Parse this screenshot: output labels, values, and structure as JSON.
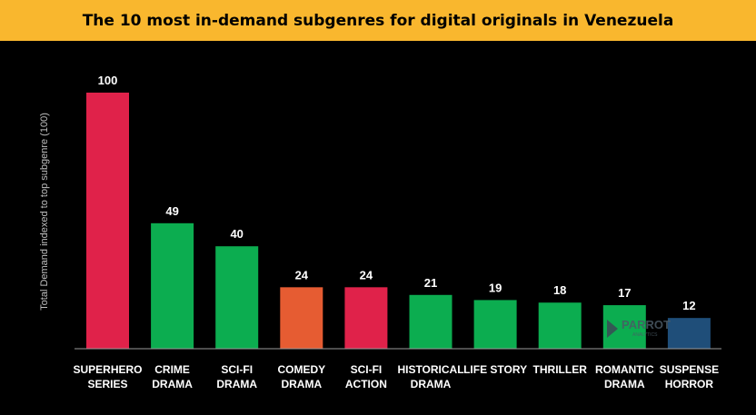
{
  "chart_data": {
    "type": "bar",
    "title": "The 10 most in-demand subgenres for digital originals in Venezuela",
    "ylabel": "Total Demand indexed to top subgenre (100)",
    "xlabel": "",
    "ylim": [
      0,
      100
    ],
    "grid": false,
    "categories": [
      [
        "SUPERHERO",
        "SERIES"
      ],
      [
        "CRIME",
        "DRAMA"
      ],
      [
        "SCI-FI",
        "DRAMA"
      ],
      [
        "COMEDY",
        "DRAMA"
      ],
      [
        "SCI-FI",
        "ACTION"
      ],
      [
        "HISTORICAL",
        "DRAMA"
      ],
      [
        "LIFE STORY"
      ],
      [
        "THRILLER"
      ],
      [
        "ROMANTIC",
        "DRAMA"
      ],
      [
        "SUSPENSE",
        "HORROR"
      ]
    ],
    "values": [
      100,
      49,
      40,
      24,
      24,
      21,
      19,
      18,
      17,
      12
    ],
    "colors": [
      "#E0224A",
      "#0CAD50",
      "#0CAD50",
      "#E65C32",
      "#E0224A",
      "#0CAD50",
      "#0CAD50",
      "#0CAD50",
      "#0CAD50",
      "#1F4E79"
    ]
  },
  "watermark": {
    "brand": "PARROT",
    "sub": "ANALYTICS",
    "icon": "parrot-logo-icon"
  }
}
